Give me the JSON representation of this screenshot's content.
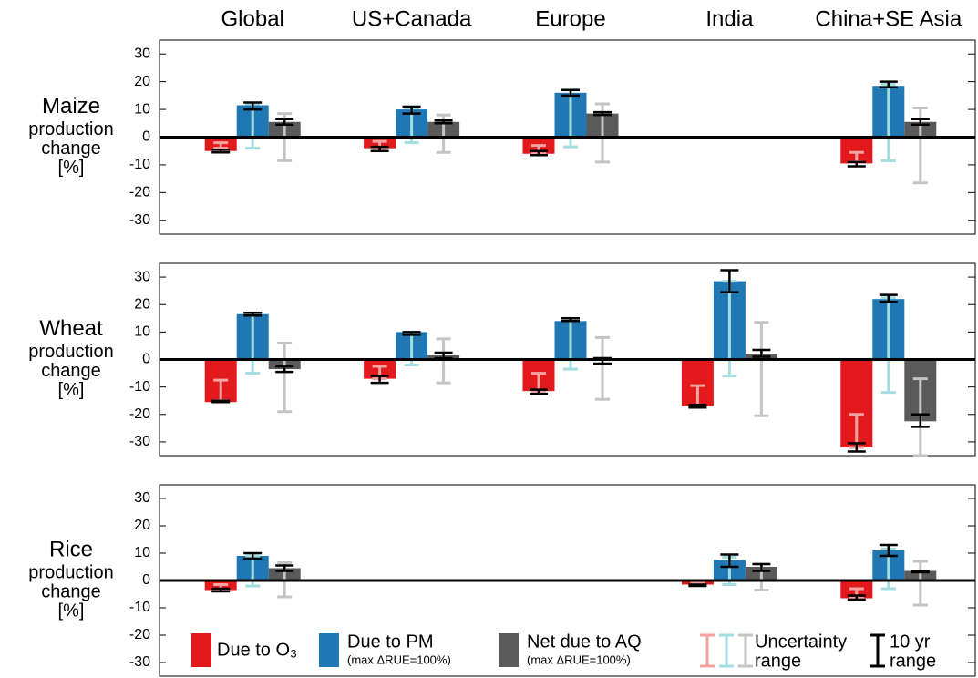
{
  "chart_data": [
    {
      "type": "bar",
      "categories": [
        "Global",
        "US+Canada",
        "Europe",
        "India",
        "China+SE Asia"
      ],
      "ylabel": [
        "Maize",
        "production",
        "change",
        "[%]"
      ],
      "ylim": [
        -35,
        35
      ],
      "yticks": [
        -30,
        -20,
        -10,
        0,
        10,
        20,
        30
      ],
      "series": [
        {
          "color": "#e31a1c",
          "values": [
            -5,
            -4,
            -6,
            null,
            -9.5
          ],
          "uncertainty": [
            [
              -4,
              -2
            ],
            [
              -4,
              -1.5
            ],
            [
              -6,
              -3
            ],
            null,
            [
              -9,
              -5.5
            ]
          ],
          "range": [
            [
              -5.5,
              -4.5
            ],
            [
              -5,
              -3.5
            ],
            [
              -6.5,
              -5
            ],
            null,
            [
              -10.5,
              -9
            ]
          ]
        },
        {
          "color": "#1f78b4",
          "values": [
            11.5,
            10,
            16,
            null,
            18.5
          ],
          "uncertainty": [
            [
              -4,
              12
            ],
            [
              -2,
              10.5
            ],
            [
              -3.5,
              17
            ],
            null,
            [
              -8.5,
              19
            ]
          ],
          "range": [
            [
              10,
              12.5
            ],
            [
              8.5,
              11
            ],
            [
              15,
              17
            ],
            null,
            [
              18,
              20
            ]
          ]
        },
        {
          "color": "#5a5a5a",
          "values": [
            5.5,
            5.5,
            8.5,
            null,
            5.5
          ],
          "uncertainty": [
            [
              -8.5,
              8.5
            ],
            [
              -5.5,
              8
            ],
            [
              -9,
              12
            ],
            null,
            [
              -16.5,
              10.5
            ]
          ],
          "range": [
            [
              4.5,
              6.5
            ],
            [
              5,
              6
            ],
            [
              8,
              9
            ],
            null,
            [
              4.5,
              6.5
            ]
          ]
        }
      ]
    },
    {
      "type": "bar",
      "ylabel": [
        "Wheat",
        "production",
        "change",
        "[%]"
      ],
      "ylim": [
        -35,
        35
      ],
      "yticks": [
        -30,
        -20,
        -10,
        0,
        10,
        20,
        30
      ],
      "series": [
        {
          "color": "#e31a1c",
          "values": [
            -15.5,
            -7,
            -11.5,
            -17,
            -32
          ],
          "uncertainty": [
            [
              -15,
              -7.5
            ],
            [
              -7,
              -2.5
            ],
            [
              -11.5,
              -5
            ],
            [
              -17,
              -9.5
            ],
            [
              -32,
              -20
            ]
          ],
          "range": [
            [
              -15.5,
              -15
            ],
            [
              -8.5,
              -6
            ],
            [
              -12.5,
              -11
            ],
            [
              -17.5,
              -16.5
            ],
            [
              -33.5,
              -30.5
            ]
          ]
        },
        {
          "color": "#1f78b4",
          "values": [
            16.5,
            10,
            14,
            28.5,
            22
          ],
          "uncertainty": [
            [
              -5,
              17
            ],
            [
              -2,
              10
            ],
            [
              -3.5,
              15
            ],
            [
              -6,
              28.5
            ],
            [
              -12,
              22.5
            ]
          ],
          "range": [
            [
              16,
              17
            ],
            [
              9,
              10
            ],
            [
              14,
              15
            ],
            [
              24.5,
              32.5
            ],
            [
              21,
              23.5
            ]
          ]
        },
        {
          "color": "#5a5a5a",
          "values": [
            -3.5,
            1.5,
            -0.5,
            2,
            -22.5
          ],
          "uncertainty": [
            [
              -19,
              6
            ],
            [
              -8.5,
              7.5
            ],
            [
              -14.5,
              8
            ],
            [
              -20.5,
              13.5
            ],
            [
              -35,
              -7
            ]
          ],
          "range": [
            [
              -4.5,
              -2.5
            ],
            [
              0.5,
              2.5
            ],
            [
              -1.5,
              0.5
            ],
            [
              1,
              3.5
            ],
            [
              -24.5,
              -20
            ]
          ]
        }
      ]
    },
    {
      "type": "bar",
      "ylabel": [
        "Rice",
        "production",
        "change",
        "[%]"
      ],
      "ylim": [
        -35,
        35
      ],
      "yticks": [
        -30,
        -20,
        -10,
        0,
        10,
        20,
        30
      ],
      "series": [
        {
          "name": "Due to O₃",
          "color": "#e31a1c",
          "values": [
            -3.5,
            null,
            null,
            -1.5,
            -6.5
          ],
          "uncertainty": [
            [
              -3.5,
              -1.5
            ],
            null,
            null,
            [
              -1.5,
              -0.5
            ],
            [
              -6.5,
              -3
            ]
          ],
          "range": [
            [
              -4,
              -3
            ],
            null,
            null,
            [
              -2,
              -1.5
            ],
            [
              -7,
              -5.5
            ]
          ]
        },
        {
          "name": "Due to PM",
          "note": "(max ΔRUE=100%)",
          "color": "#1f78b4",
          "values": [
            9,
            null,
            null,
            7.5,
            11
          ],
          "uncertainty": [
            [
              -2,
              9
            ],
            null,
            null,
            [
              -1.5,
              8.5
            ],
            [
              -3,
              11.5
            ]
          ],
          "range": [
            [
              8,
              10
            ],
            null,
            null,
            [
              5,
              9.5
            ],
            [
              9,
              13
            ]
          ]
        },
        {
          "name": "Net due to AQ",
          "note": "(max ΔRUE=100%)",
          "color": "#5a5a5a",
          "values": [
            4.5,
            null,
            null,
            5,
            3.5
          ],
          "uncertainty": [
            [
              -6,
              6.5
            ],
            null,
            null,
            [
              -3.5,
              6
            ],
            [
              -9,
              7
            ]
          ],
          "range": [
            [
              3.5,
              5.5
            ],
            null,
            null,
            [
              3.5,
              6
            ],
            [
              3,
              3.5
            ]
          ]
        }
      ],
      "uncertainty_label": [
        "Uncertainty",
        "range"
      ],
      "range_label": [
        "10 yr",
        "range"
      ]
    }
  ]
}
